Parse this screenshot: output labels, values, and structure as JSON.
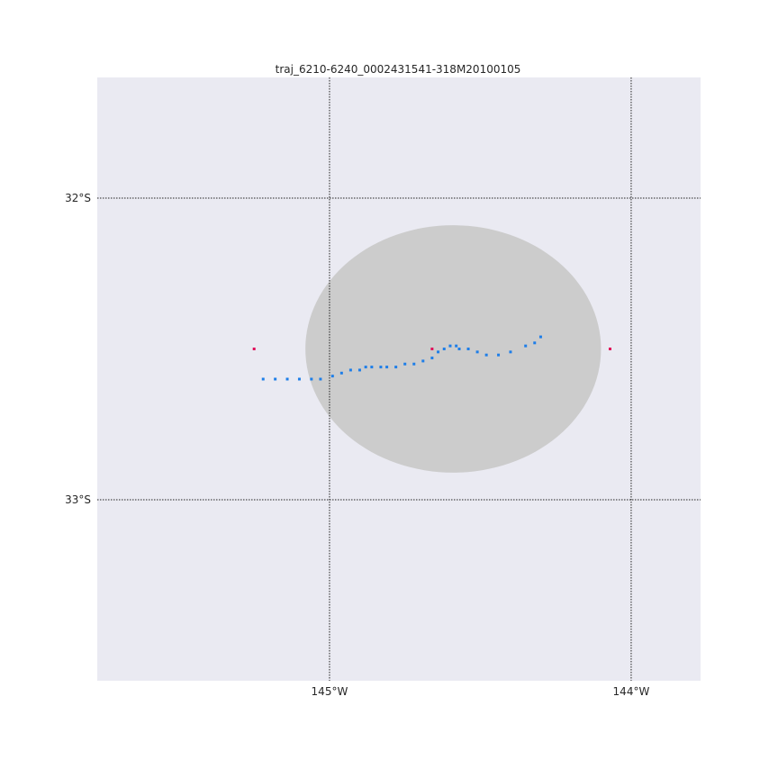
{
  "title": "traj_6210-6240_0002431541-318M20100105",
  "colors": {
    "background": "#eaeaf2",
    "circle": "#cccccc",
    "trajectory": "#1e7ee8",
    "points": "#e0105a",
    "gridline": "#222222"
  },
  "chart_data": {
    "type": "scatter",
    "title": "traj_6210-6240_0002431541-318M20100105",
    "xlim": [
      -145.77,
      -143.77
    ],
    "ylim": [
      -33.6,
      -31.6
    ],
    "grid": true,
    "x_ticks": [
      {
        "value": -145.0,
        "label": "145°W"
      },
      {
        "value": -144.0,
        "label": "144°W"
      }
    ],
    "y_ticks": [
      {
        "value": -32.0,
        "label": "32°S"
      },
      {
        "value": -33.0,
        "label": "33°S"
      }
    ],
    "circle": {
      "center": [
        -144.59,
        -32.5
      ],
      "radius_lon": 0.49,
      "radius_lat": 0.41
    },
    "series": [
      {
        "kind": "trajectory",
        "points": [
          [
            -145.22,
            -32.6
          ],
          [
            -145.18,
            -32.6
          ],
          [
            -145.14,
            -32.6
          ],
          [
            -145.1,
            -32.6
          ],
          [
            -145.06,
            -32.6
          ],
          [
            -145.03,
            -32.6
          ],
          [
            -144.99,
            -32.59
          ],
          [
            -144.96,
            -32.58
          ],
          [
            -144.93,
            -32.57
          ],
          [
            -144.9,
            -32.57
          ],
          [
            -144.88,
            -32.56
          ],
          [
            -144.86,
            -32.56
          ],
          [
            -144.83,
            -32.56
          ],
          [
            -144.81,
            -32.56
          ],
          [
            -144.78,
            -32.56
          ],
          [
            -144.75,
            -32.55
          ],
          [
            -144.72,
            -32.55
          ],
          [
            -144.69,
            -32.54
          ],
          [
            -144.66,
            -32.53
          ],
          [
            -144.64,
            -32.51
          ],
          [
            -144.62,
            -32.5
          ],
          [
            -144.6,
            -32.49
          ],
          [
            -144.58,
            -32.49
          ],
          [
            -144.57,
            -32.5
          ],
          [
            -144.54,
            -32.5
          ],
          [
            -144.51,
            -32.51
          ],
          [
            -144.48,
            -32.52
          ],
          [
            -144.44,
            -32.52
          ],
          [
            -144.4,
            -32.51
          ],
          [
            -144.35,
            -32.49
          ],
          [
            -144.32,
            -32.48
          ],
          [
            -144.3,
            -32.46
          ]
        ]
      },
      {
        "kind": "markers",
        "points": [
          [
            -145.25,
            -32.5
          ],
          [
            -144.66,
            -32.5
          ],
          [
            -144.07,
            -32.5
          ]
        ]
      }
    ]
  }
}
